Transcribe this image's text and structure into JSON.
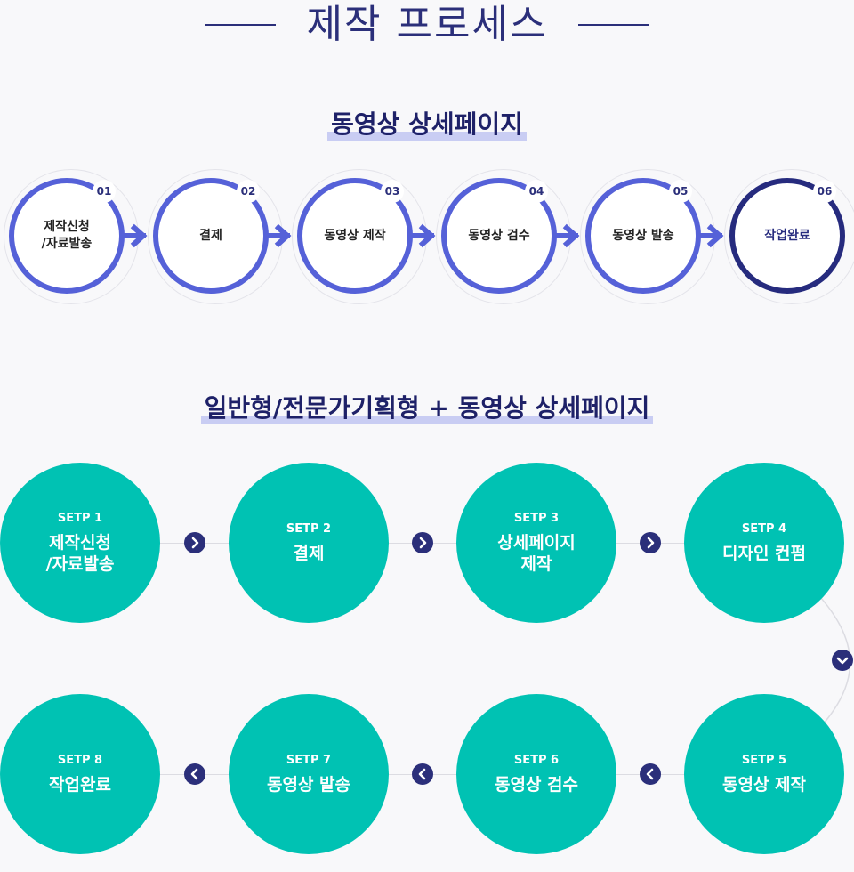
{
  "page_title": "제작 프로세스",
  "section1": {
    "title": "동영상 상세페이지",
    "steps": [
      {
        "num": "01",
        "label": "제작신청\n/자료발송"
      },
      {
        "num": "02",
        "label": "결제"
      },
      {
        "num": "03",
        "label": "동영상 제작"
      },
      {
        "num": "04",
        "label": "동영상 검수"
      },
      {
        "num": "05",
        "label": "동영상 발송"
      },
      {
        "num": "06",
        "label": "작업완료"
      }
    ]
  },
  "section2": {
    "title": "일반형/전문가기획형 + 동영상 상세페이지",
    "steps": [
      {
        "step": "SETP 1",
        "label": "제작신청\n/자료발송"
      },
      {
        "step": "SETP 2",
        "label": "결제"
      },
      {
        "step": "SETP 3",
        "label": "상세페이지\n제작"
      },
      {
        "step": "SETP 4",
        "label": "디자인 컨펌"
      },
      {
        "step": "SETP 5",
        "label": "동영상 제작"
      },
      {
        "step": "SETP 6",
        "label": "동영상 검수"
      },
      {
        "step": "SETP 7",
        "label": "동영상 발송"
      },
      {
        "step": "SETP 8",
        "label": "작업완료"
      }
    ]
  },
  "colors": {
    "ring": "#5561d8",
    "ring_final": "#262b7e",
    "teal": "#00c2b3",
    "navy": "#2b2f7a"
  }
}
